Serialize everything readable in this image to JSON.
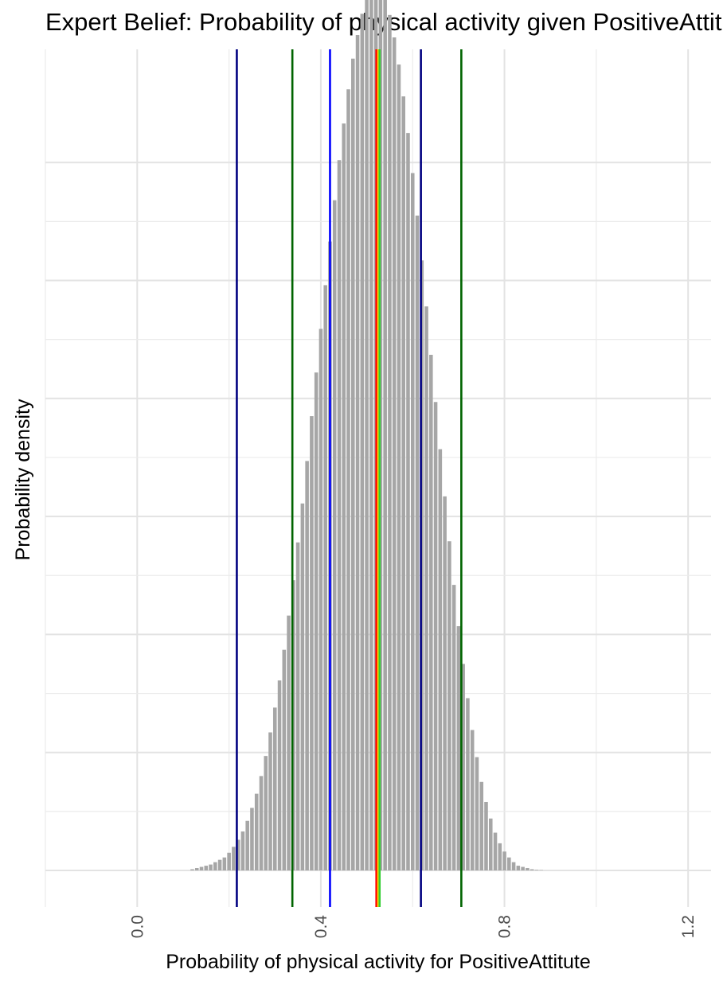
{
  "chart_data": {
    "type": "histogram",
    "title": "Expert Belief: Probability of physical activity given PositiveAttitute",
    "xlabel": "Probability of physical activity for PositiveAttitute",
    "ylabel": "Probability density",
    "xlim": [
      -0.2,
      1.25
    ],
    "ylim": [
      0,
      8.7
    ],
    "x_ticks": [
      0.0,
      0.4,
      0.8,
      1.2
    ],
    "x_tick_labels": [
      "0.0",
      "0.4",
      "0.8",
      "1.2"
    ],
    "y_gridlines": [
      0,
      1,
      2,
      3,
      4,
      5,
      6
    ],
    "y_tick_labels_visible": false,
    "bar_color": "#a6a6a6",
    "bar_width": 0.01,
    "bars": [
      {
        "x": 0.12,
        "y": 0.01
      },
      {
        "x": 0.13,
        "y": 0.02
      },
      {
        "x": 0.14,
        "y": 0.03
      },
      {
        "x": 0.15,
        "y": 0.04
      },
      {
        "x": 0.16,
        "y": 0.05
      },
      {
        "x": 0.17,
        "y": 0.07
      },
      {
        "x": 0.18,
        "y": 0.09
      },
      {
        "x": 0.19,
        "y": 0.11
      },
      {
        "x": 0.2,
        "y": 0.15
      },
      {
        "x": 0.21,
        "y": 0.2
      },
      {
        "x": 0.22,
        "y": 0.26
      },
      {
        "x": 0.23,
        "y": 0.33
      },
      {
        "x": 0.24,
        "y": 0.42
      },
      {
        "x": 0.25,
        "y": 0.53
      },
      {
        "x": 0.26,
        "y": 0.65
      },
      {
        "x": 0.27,
        "y": 0.8
      },
      {
        "x": 0.28,
        "y": 0.97
      },
      {
        "x": 0.29,
        "y": 1.17
      },
      {
        "x": 0.3,
        "y": 1.38
      },
      {
        "x": 0.31,
        "y": 1.61
      },
      {
        "x": 0.32,
        "y": 1.87
      },
      {
        "x": 0.33,
        "y": 2.16
      },
      {
        "x": 0.34,
        "y": 2.46
      },
      {
        "x": 0.35,
        "y": 2.78
      },
      {
        "x": 0.36,
        "y": 3.11
      },
      {
        "x": 0.37,
        "y": 3.47
      },
      {
        "x": 0.38,
        "y": 3.85
      },
      {
        "x": 0.39,
        "y": 4.22
      },
      {
        "x": 0.4,
        "y": 4.59
      },
      {
        "x": 0.41,
        "y": 4.96
      },
      {
        "x": 0.42,
        "y": 5.33
      },
      {
        "x": 0.43,
        "y": 5.68
      },
      {
        "x": 0.44,
        "y": 6.02
      },
      {
        "x": 0.45,
        "y": 6.33
      },
      {
        "x": 0.46,
        "y": 6.62
      },
      {
        "x": 0.47,
        "y": 6.88
      },
      {
        "x": 0.48,
        "y": 7.08
      },
      {
        "x": 0.49,
        "y": 7.26
      },
      {
        "x": 0.5,
        "y": 7.39
      },
      {
        "x": 0.51,
        "y": 7.46
      },
      {
        "x": 0.52,
        "y": 7.49
      },
      {
        "x": 0.53,
        "y": 7.46
      },
      {
        "x": 0.54,
        "y": 7.38
      },
      {
        "x": 0.55,
        "y": 7.25
      },
      {
        "x": 0.56,
        "y": 7.06
      },
      {
        "x": 0.57,
        "y": 6.83
      },
      {
        "x": 0.58,
        "y": 6.56
      },
      {
        "x": 0.59,
        "y": 6.25
      },
      {
        "x": 0.6,
        "y": 5.91
      },
      {
        "x": 0.61,
        "y": 5.55
      },
      {
        "x": 0.62,
        "y": 5.17
      },
      {
        "x": 0.63,
        "y": 4.78
      },
      {
        "x": 0.64,
        "y": 4.37
      },
      {
        "x": 0.65,
        "y": 3.97
      },
      {
        "x": 0.66,
        "y": 3.57
      },
      {
        "x": 0.67,
        "y": 3.17
      },
      {
        "x": 0.68,
        "y": 2.79
      },
      {
        "x": 0.69,
        "y": 2.42
      },
      {
        "x": 0.7,
        "y": 2.07
      },
      {
        "x": 0.71,
        "y": 1.75
      },
      {
        "x": 0.72,
        "y": 1.46
      },
      {
        "x": 0.73,
        "y": 1.19
      },
      {
        "x": 0.74,
        "y": 0.96
      },
      {
        "x": 0.75,
        "y": 0.75
      },
      {
        "x": 0.76,
        "y": 0.58
      },
      {
        "x": 0.77,
        "y": 0.44
      },
      {
        "x": 0.78,
        "y": 0.32
      },
      {
        "x": 0.79,
        "y": 0.23
      },
      {
        "x": 0.8,
        "y": 0.16
      },
      {
        "x": 0.81,
        "y": 0.11
      },
      {
        "x": 0.82,
        "y": 0.07
      },
      {
        "x": 0.83,
        "y": 0.04
      },
      {
        "x": 0.84,
        "y": 0.03
      },
      {
        "x": 0.85,
        "y": 0.02
      },
      {
        "x": 0.86,
        "y": 0.01
      },
      {
        "x": 0.87,
        "y": 0.005
      },
      {
        "x": 0.88,
        "y": 0.003
      }
    ],
    "vlines": [
      {
        "x": 0.217,
        "color": "#000080"
      },
      {
        "x": 0.618,
        "color": "#000080"
      },
      {
        "x": 0.338,
        "color": "#006400"
      },
      {
        "x": 0.706,
        "color": "#006400"
      },
      {
        "x": 0.42,
        "color": "#0000ff"
      },
      {
        "x": 0.521,
        "color": "#ff0000"
      },
      {
        "x": 0.525,
        "color": "#ffd700"
      },
      {
        "x": 0.528,
        "color": "#32cd32"
      }
    ]
  }
}
